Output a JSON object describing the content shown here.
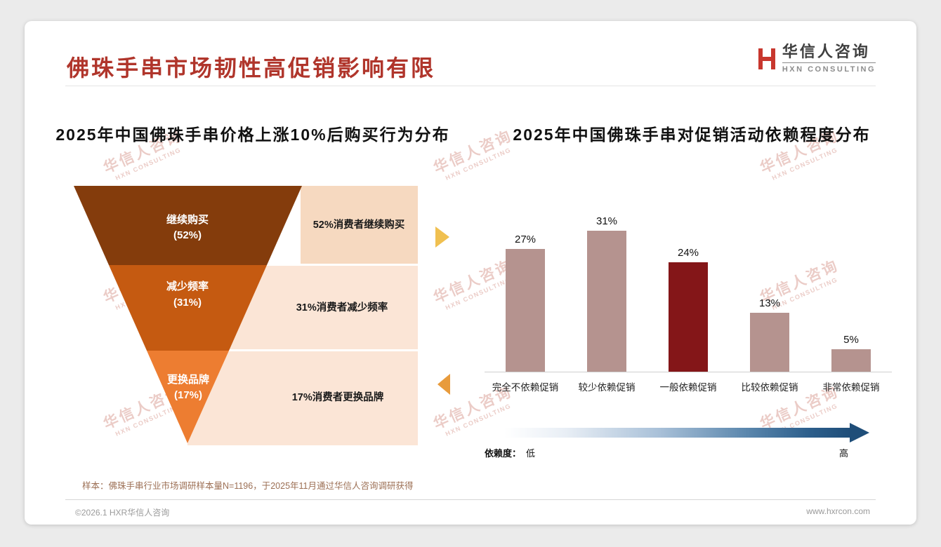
{
  "page": {
    "title": "佛珠手串市场韧性高促销影响有限",
    "logo": {
      "zh": "华信人咨询",
      "en": "HXN CONSULTING"
    },
    "watermark": {
      "zh": "华信人咨询",
      "en": "HXN CONSULTING"
    },
    "note": "样本：佛珠手串行业市场调研样本量N=1196，于2025年11月通过华信人咨询调研获得",
    "footer": {
      "left": "©2026.1 HXR华信人咨询",
      "right": "www.hxrcon.com"
    },
    "theme": {
      "title_color": "#B0352B",
      "right_pointer_color": "#F0C050",
      "left_pointer_color": "#E89B3C"
    }
  },
  "chart_data": [
    {
      "type": "funnel",
      "title": "2025年中国佛珠手串价格上涨10%后购买行为分布",
      "segments": [
        {
          "label": "继续购买",
          "value_label": "(52%)",
          "pct": 52,
          "desc": "52%消费者继续购买",
          "color": "#843C0C"
        },
        {
          "label": "减少频率",
          "value_label": "(31%)",
          "pct": 31,
          "desc": "31%消费者减少频率",
          "color": "#C55A11"
        },
        {
          "label": "更换品牌",
          "value_label": "(17%)",
          "pct": 17,
          "desc": "17%消费者更换品牌",
          "color": "#ED7D31"
        }
      ]
    },
    {
      "type": "bar",
      "title": "2025年中国佛珠手串对促销活动依赖程度分布",
      "categories": [
        "完全不依赖促销",
        "较少依赖促销",
        "一般依赖促销",
        "比较依赖促销",
        "非常依赖促销"
      ],
      "values": [
        27,
        31,
        24,
        13,
        5
      ],
      "value_labels": [
        "27%",
        "31%",
        "24%",
        "13%",
        "5%"
      ],
      "bar_colors": [
        "#B5938F",
        "#B5938F",
        "#841618",
        "#B5938F",
        "#B5938F"
      ],
      "ylim": [
        0,
        35
      ],
      "grid": false,
      "legend_axis": {
        "label": "依赖度：",
        "low": "低",
        "high": "高",
        "gradient_end": "#1F4E79"
      }
    }
  ]
}
